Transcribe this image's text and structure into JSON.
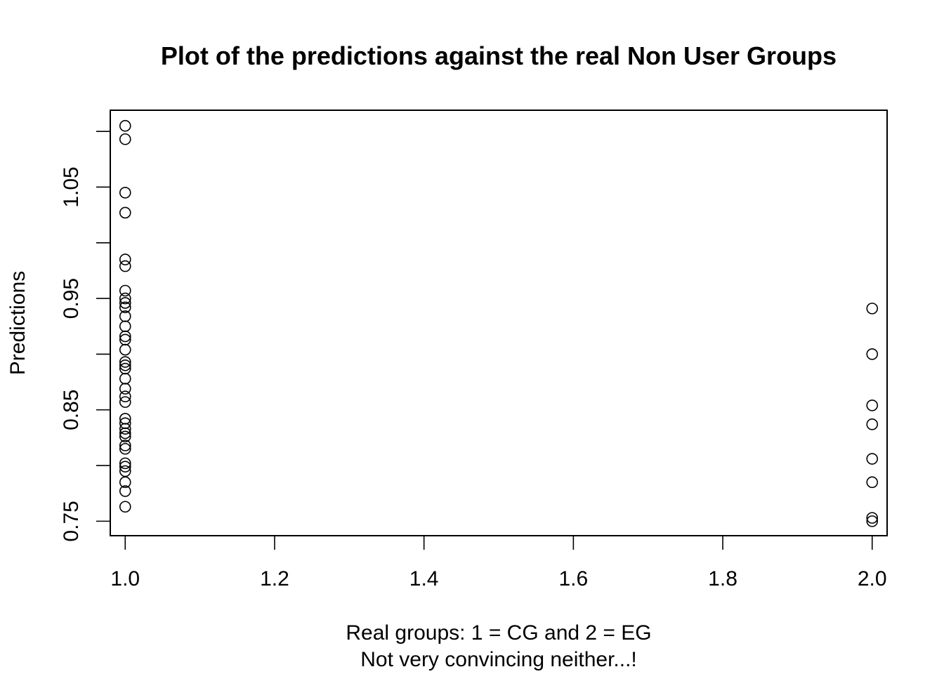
{
  "chart_data": {
    "type": "scatter",
    "title": "Plot of the predictions against the real Non User Groups",
    "xlabel": "Real groups: 1 = CG and 2 = EG",
    "xlabel_line2": "Not very convincing neither...!",
    "ylabel": "Predictions",
    "xlim": [
      0.98,
      2.02
    ],
    "ylim": [
      0.737,
      1.119
    ],
    "x_ticks": [
      1.0,
      1.2,
      1.4,
      1.6,
      1.8,
      2.0
    ],
    "x_tick_labels": [
      "1.0",
      "1.2",
      "1.4",
      "1.6",
      "1.8",
      "2.0"
    ],
    "y_ticks": [
      0.75,
      0.8,
      0.85,
      0.9,
      0.95,
      1.0,
      1.05,
      1.1
    ],
    "y_tick_labels": [
      "0.75",
      "",
      "0.85",
      "",
      "0.95",
      "",
      "1.05",
      ""
    ],
    "grid": false,
    "legend": "none",
    "marker": "open-circle",
    "color": "#000000",
    "points": [
      {
        "x": 1,
        "y": 1.105
      },
      {
        "x": 1,
        "y": 1.093
      },
      {
        "x": 1,
        "y": 1.045
      },
      {
        "x": 1,
        "y": 1.027
      },
      {
        "x": 1,
        "y": 0.985
      },
      {
        "x": 1,
        "y": 0.979
      },
      {
        "x": 1,
        "y": 0.957
      },
      {
        "x": 1,
        "y": 0.95
      },
      {
        "x": 1,
        "y": 0.946
      },
      {
        "x": 1,
        "y": 0.942
      },
      {
        "x": 1,
        "y": 0.934
      },
      {
        "x": 1,
        "y": 0.925
      },
      {
        "x": 1,
        "y": 0.916
      },
      {
        "x": 1,
        "y": 0.913
      },
      {
        "x": 1,
        "y": 0.904
      },
      {
        "x": 1,
        "y": 0.893
      },
      {
        "x": 1,
        "y": 0.89
      },
      {
        "x": 1,
        "y": 0.887
      },
      {
        "x": 1,
        "y": 0.878
      },
      {
        "x": 1,
        "y": 0.869
      },
      {
        "x": 1,
        "y": 0.862
      },
      {
        "x": 1,
        "y": 0.857
      },
      {
        "x": 1,
        "y": 0.842
      },
      {
        "x": 1,
        "y": 0.838
      },
      {
        "x": 1,
        "y": 0.833
      },
      {
        "x": 1,
        "y": 0.829
      },
      {
        "x": 1,
        "y": 0.826
      },
      {
        "x": 1,
        "y": 0.818
      },
      {
        "x": 1,
        "y": 0.815
      },
      {
        "x": 1,
        "y": 0.802
      },
      {
        "x": 1,
        "y": 0.799
      },
      {
        "x": 1,
        "y": 0.795
      },
      {
        "x": 1,
        "y": 0.785
      },
      {
        "x": 1,
        "y": 0.777
      },
      {
        "x": 1,
        "y": 0.763
      },
      {
        "x": 2,
        "y": 0.941
      },
      {
        "x": 2,
        "y": 0.9
      },
      {
        "x": 2,
        "y": 0.854
      },
      {
        "x": 2,
        "y": 0.837
      },
      {
        "x": 2,
        "y": 0.806
      },
      {
        "x": 2,
        "y": 0.785
      },
      {
        "x": 2,
        "y": 0.753
      },
      {
        "x": 2,
        "y": 0.75
      }
    ]
  }
}
